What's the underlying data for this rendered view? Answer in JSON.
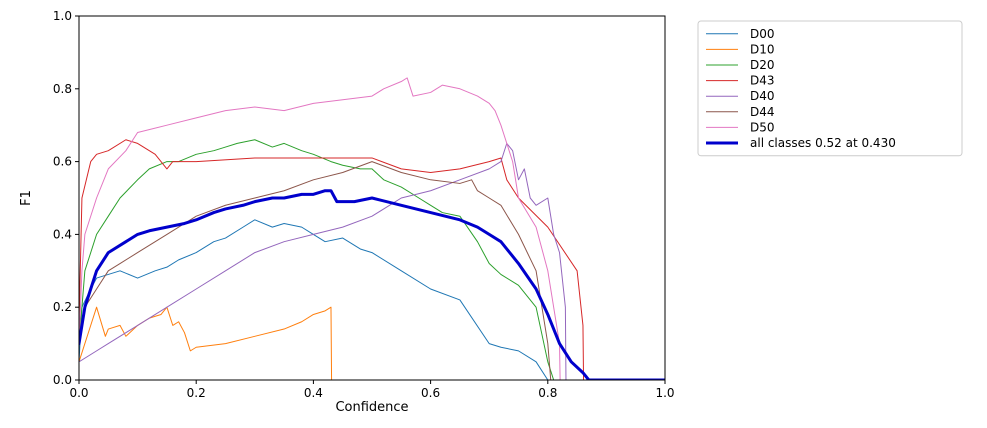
{
  "chart_data": {
    "type": "line",
    "title": "",
    "xlabel": "Confidence",
    "ylabel": "F1",
    "xlim": [
      0,
      1
    ],
    "ylim": [
      0,
      1
    ],
    "x_ticks": [
      0,
      0.2,
      0.4,
      0.6,
      0.8,
      1.0
    ],
    "y_ticks": [
      0,
      0.2,
      0.4,
      0.6,
      0.8,
      1.0
    ],
    "x_tick_labels": [
      "0.0",
      "0.2",
      "0.4",
      "0.6",
      "0.8",
      "1.0"
    ],
    "y_tick_labels": [
      "0.0",
      "0.2",
      "0.4",
      "0.6",
      "0.8",
      "1.0"
    ],
    "grid": false,
    "legend_position": "outside-right",
    "series": [
      {
        "name": "D00",
        "color": "#1f77b4",
        "width": 1,
        "x": [
          0,
          0.005,
          0.02,
          0.03,
          0.05,
          0.07,
          0.1,
          0.13,
          0.15,
          0.17,
          0.2,
          0.23,
          0.25,
          0.28,
          0.3,
          0.33,
          0.35,
          0.38,
          0.4,
          0.42,
          0.45,
          0.48,
          0.5,
          0.55,
          0.6,
          0.65,
          0.7,
          0.72,
          0.75,
          0.78,
          0.8
        ],
        "y": [
          0.05,
          0.2,
          0.25,
          0.28,
          0.29,
          0.3,
          0.28,
          0.3,
          0.31,
          0.33,
          0.35,
          0.38,
          0.39,
          0.42,
          0.44,
          0.42,
          0.43,
          0.42,
          0.4,
          0.38,
          0.39,
          0.36,
          0.35,
          0.3,
          0.25,
          0.22,
          0.1,
          0.09,
          0.08,
          0.05,
          0
        ]
      },
      {
        "name": "D10",
        "color": "#ff7f0e",
        "width": 1,
        "x": [
          0,
          0.02,
          0.03,
          0.045,
          0.05,
          0.07,
          0.08,
          0.1,
          0.12,
          0.14,
          0.15,
          0.16,
          0.17,
          0.18,
          0.19,
          0.2,
          0.25,
          0.3,
          0.35,
          0.38,
          0.4,
          0.42,
          0.43,
          0.431
        ],
        "y": [
          0.05,
          0.15,
          0.2,
          0.12,
          0.14,
          0.15,
          0.12,
          0.15,
          0.17,
          0.18,
          0.2,
          0.15,
          0.16,
          0.13,
          0.08,
          0.09,
          0.1,
          0.12,
          0.14,
          0.16,
          0.18,
          0.19,
          0.2,
          0
        ]
      },
      {
        "name": "D20",
        "color": "#2ca02c",
        "width": 1,
        "x": [
          0,
          0.01,
          0.03,
          0.05,
          0.07,
          0.1,
          0.12,
          0.15,
          0.17,
          0.2,
          0.23,
          0.25,
          0.27,
          0.3,
          0.33,
          0.35,
          0.38,
          0.4,
          0.43,
          0.45,
          0.48,
          0.5,
          0.52,
          0.55,
          0.58,
          0.6,
          0.62,
          0.65,
          0.68,
          0.7,
          0.72,
          0.75,
          0.78,
          0.8,
          0.81
        ],
        "y": [
          0.1,
          0.3,
          0.4,
          0.45,
          0.5,
          0.55,
          0.58,
          0.6,
          0.6,
          0.62,
          0.63,
          0.64,
          0.65,
          0.66,
          0.64,
          0.65,
          0.63,
          0.62,
          0.6,
          0.59,
          0.58,
          0.58,
          0.55,
          0.53,
          0.5,
          0.48,
          0.46,
          0.45,
          0.38,
          0.32,
          0.29,
          0.26,
          0.2,
          0.05,
          0
        ]
      },
      {
        "name": "D43",
        "color": "#d62728",
        "width": 1,
        "x": [
          0,
          0.005,
          0.02,
          0.03,
          0.05,
          0.08,
          0.1,
          0.13,
          0.15,
          0.16,
          0.2,
          0.3,
          0.4,
          0.45,
          0.5,
          0.55,
          0.6,
          0.65,
          0.7,
          0.72,
          0.73,
          0.75,
          0.8,
          0.85,
          0.86,
          0.861
        ],
        "y": [
          0.15,
          0.5,
          0.6,
          0.62,
          0.63,
          0.66,
          0.65,
          0.62,
          0.58,
          0.6,
          0.6,
          0.61,
          0.61,
          0.61,
          0.61,
          0.58,
          0.57,
          0.58,
          0.6,
          0.61,
          0.55,
          0.5,
          0.42,
          0.3,
          0.15,
          0
        ]
      },
      {
        "name": "D40",
        "color": "#9467bd",
        "width": 1,
        "x": [
          0,
          0.03,
          0.05,
          0.1,
          0.15,
          0.2,
          0.25,
          0.3,
          0.35,
          0.4,
          0.45,
          0.5,
          0.55,
          0.6,
          0.65,
          0.7,
          0.72,
          0.73,
          0.74,
          0.75,
          0.76,
          0.77,
          0.78,
          0.8,
          0.81,
          0.82,
          0.83,
          0.831
        ],
        "y": [
          0.05,
          0.08,
          0.1,
          0.15,
          0.2,
          0.25,
          0.3,
          0.35,
          0.38,
          0.4,
          0.42,
          0.45,
          0.5,
          0.52,
          0.55,
          0.58,
          0.6,
          0.65,
          0.63,
          0.55,
          0.58,
          0.5,
          0.48,
          0.5,
          0.4,
          0.35,
          0.2,
          0
        ]
      },
      {
        "name": "D44",
        "color": "#8c564b",
        "width": 1,
        "x": [
          0,
          0.01,
          0.03,
          0.05,
          0.07,
          0.1,
          0.13,
          0.15,
          0.2,
          0.25,
          0.3,
          0.35,
          0.4,
          0.45,
          0.5,
          0.55,
          0.6,
          0.65,
          0.67,
          0.68,
          0.7,
          0.72,
          0.75,
          0.78,
          0.8,
          0.805
        ],
        "y": [
          0.1,
          0.2,
          0.25,
          0.3,
          0.32,
          0.35,
          0.38,
          0.4,
          0.45,
          0.48,
          0.5,
          0.52,
          0.55,
          0.57,
          0.6,
          0.57,
          0.55,
          0.54,
          0.55,
          0.52,
          0.5,
          0.48,
          0.4,
          0.3,
          0.1,
          0
        ]
      },
      {
        "name": "D50",
        "color": "#e377c2",
        "width": 1,
        "x": [
          0,
          0.005,
          0.01,
          0.03,
          0.05,
          0.08,
          0.1,
          0.15,
          0.2,
          0.25,
          0.3,
          0.35,
          0.4,
          0.45,
          0.5,
          0.52,
          0.55,
          0.56,
          0.57,
          0.6,
          0.62,
          0.65,
          0.68,
          0.7,
          0.71,
          0.72,
          0.74,
          0.75,
          0.78,
          0.8,
          0.82,
          0.821
        ],
        "y": [
          0.1,
          0.3,
          0.4,
          0.5,
          0.58,
          0.63,
          0.68,
          0.7,
          0.72,
          0.74,
          0.75,
          0.74,
          0.76,
          0.77,
          0.78,
          0.8,
          0.82,
          0.83,
          0.78,
          0.79,
          0.81,
          0.8,
          0.78,
          0.76,
          0.74,
          0.7,
          0.6,
          0.5,
          0.42,
          0.3,
          0.1,
          0
        ]
      },
      {
        "name": "all classes 0.52 at 0.430",
        "color": "#0000cc",
        "width": 3,
        "x": [
          0,
          0.005,
          0.01,
          0.02,
          0.03,
          0.05,
          0.08,
          0.1,
          0.12,
          0.15,
          0.18,
          0.2,
          0.23,
          0.25,
          0.28,
          0.3,
          0.33,
          0.35,
          0.38,
          0.4,
          0.42,
          0.43,
          0.44,
          0.47,
          0.5,
          0.55,
          0.6,
          0.65,
          0.68,
          0.7,
          0.72,
          0.75,
          0.78,
          0.8,
          0.82,
          0.84,
          0.86,
          0.87,
          0.9,
          1.0
        ],
        "y": [
          0.1,
          0.15,
          0.2,
          0.25,
          0.3,
          0.35,
          0.38,
          0.4,
          0.41,
          0.42,
          0.43,
          0.44,
          0.46,
          0.47,
          0.48,
          0.49,
          0.5,
          0.5,
          0.51,
          0.51,
          0.52,
          0.52,
          0.49,
          0.49,
          0.5,
          0.48,
          0.46,
          0.44,
          0.42,
          0.4,
          0.38,
          0.32,
          0.25,
          0.18,
          0.1,
          0.05,
          0.02,
          0,
          0,
          0
        ]
      }
    ]
  }
}
